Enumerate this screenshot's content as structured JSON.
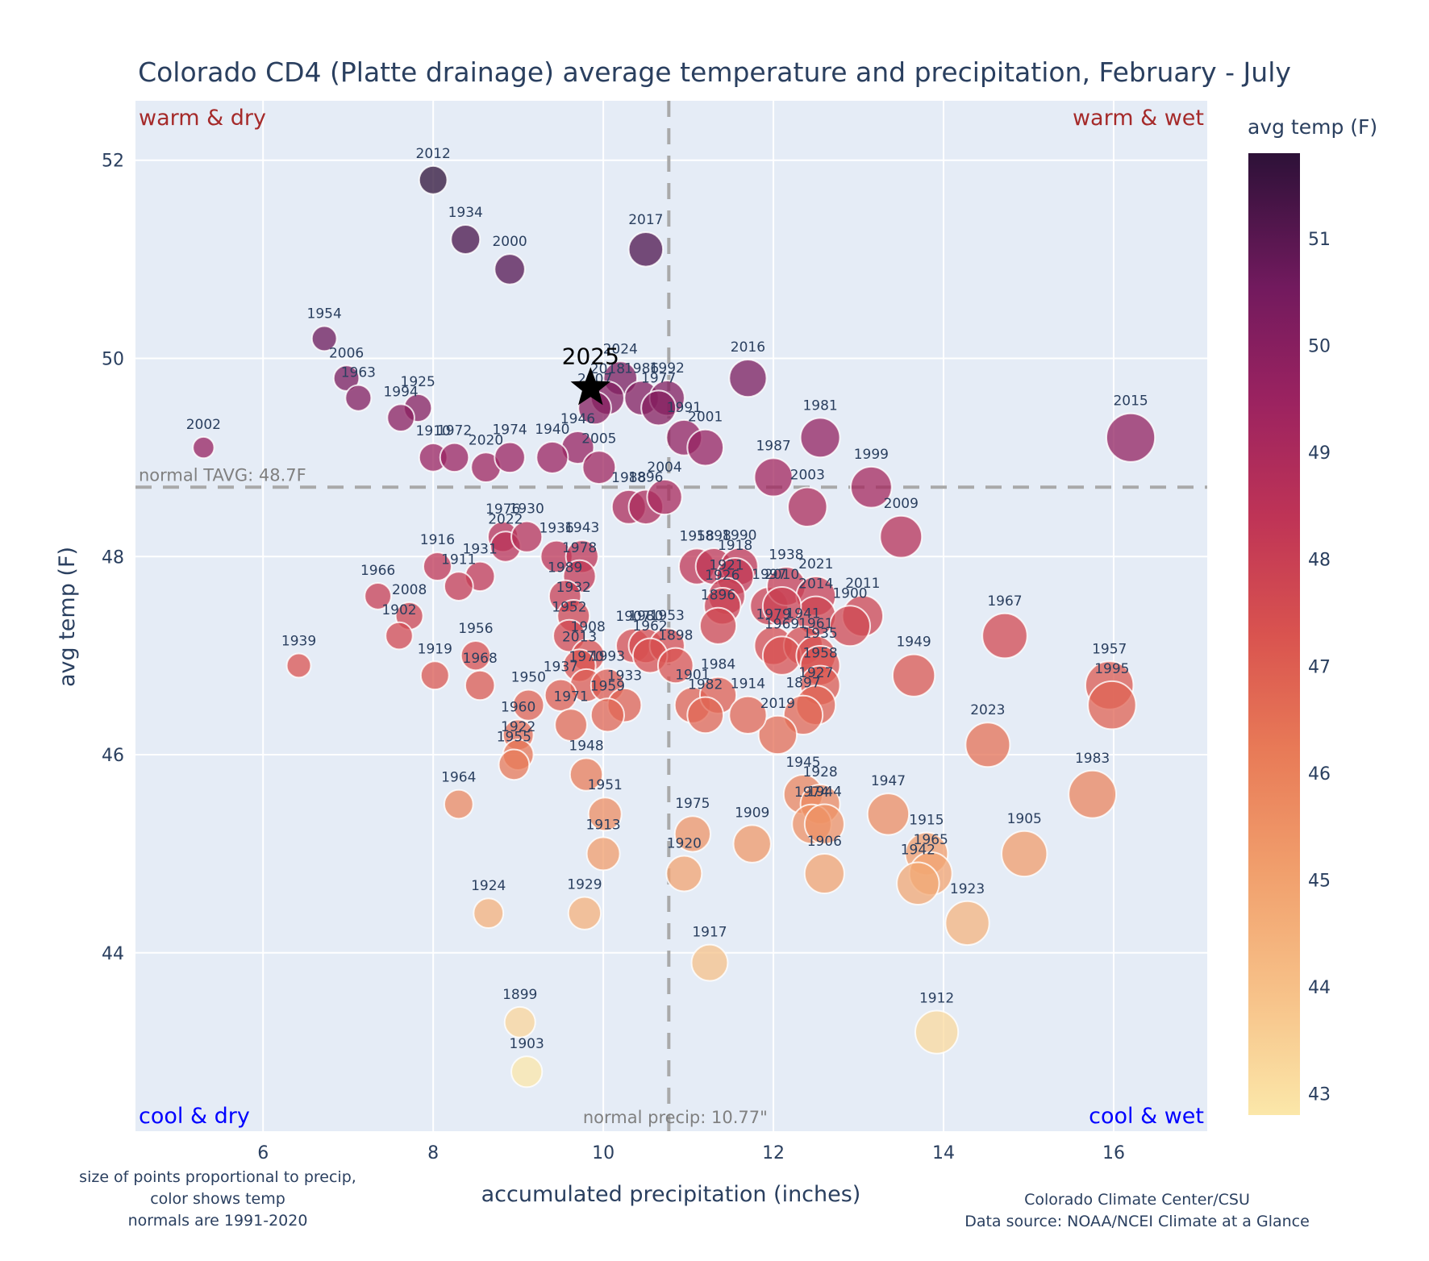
{
  "chart_data": {
    "type": "scatter",
    "title": "Colorado CD4 (Platte drainage) average temperature and precipitation, February - July",
    "xlabel": "accumulated precipitation (inches)",
    "ylabel": "avg temp (F)",
    "xlim": [
      4.5,
      17.1
    ],
    "ylim": [
      42.2,
      52.6
    ],
    "xticks": [
      6,
      8,
      10,
      12,
      14,
      16
    ],
    "yticks": [
      44,
      46,
      48,
      50,
      52
    ],
    "grid": true,
    "colorbar": {
      "title": "avg temp (F)",
      "range": [
        42.8,
        51.8
      ],
      "ticks": [
        43,
        44,
        45,
        46,
        47,
        48,
        49,
        50,
        51
      ],
      "colorscale": "magma-reversed"
    },
    "normal_temp": 48.7,
    "normal_precip": 10.77,
    "normal_temp_label": "normal TAVG: 48.7F",
    "normal_precip_label": "normal precip: 10.77\"",
    "quadrants": {
      "top_left": "warm & dry",
      "top_right": "warm & wet",
      "bottom_left": "cool & dry",
      "bottom_right": "cool & wet"
    },
    "highlight": {
      "year": "2025",
      "x": 9.85,
      "y": 49.7,
      "marker": "star"
    },
    "points": [
      {
        "year": "2012",
        "x": 8.0,
        "y": 51.8
      },
      {
        "year": "1934",
        "x": 8.38,
        "y": 51.2
      },
      {
        "year": "2000",
        "x": 8.9,
        "y": 50.9
      },
      {
        "year": "2017",
        "x": 10.5,
        "y": 51.1
      },
      {
        "year": "1954",
        "x": 6.72,
        "y": 50.2
      },
      {
        "year": "2006",
        "x": 6.98,
        "y": 49.8
      },
      {
        "year": "1963",
        "x": 7.12,
        "y": 49.6
      },
      {
        "year": "1925",
        "x": 7.82,
        "y": 49.5
      },
      {
        "year": "1994",
        "x": 7.62,
        "y": 49.4
      },
      {
        "year": "2002",
        "x": 5.3,
        "y": 49.1
      },
      {
        "year": "2024",
        "x": 10.2,
        "y": 49.8
      },
      {
        "year": "2018",
        "x": 10.05,
        "y": 49.6
      },
      {
        "year": "2007",
        "x": 9.9,
        "y": 49.5
      },
      {
        "year": "1986",
        "x": 10.45,
        "y": 49.6
      },
      {
        "year": "1992",
        "x": 10.75,
        "y": 49.6
      },
      {
        "year": "1977",
        "x": 10.65,
        "y": 49.5
      },
      {
        "year": "1946",
        "x": 9.7,
        "y": 49.1
      },
      {
        "year": "1991",
        "x": 10.95,
        "y": 49.2
      },
      {
        "year": "2001",
        "x": 11.2,
        "y": 49.1
      },
      {
        "year": "2016",
        "x": 11.7,
        "y": 49.8
      },
      {
        "year": "1981",
        "x": 12.55,
        "y": 49.2
      },
      {
        "year": "1910",
        "x": 8.0,
        "y": 49.0
      },
      {
        "year": "1972",
        "x": 8.25,
        "y": 49.0
      },
      {
        "year": "2020",
        "x": 8.62,
        "y": 48.9
      },
      {
        "year": "1974",
        "x": 8.9,
        "y": 49.0
      },
      {
        "year": "1940",
        "x": 9.4,
        "y": 49.0
      },
      {
        "year": "2005",
        "x": 9.95,
        "y": 48.9
      },
      {
        "year": "1987",
        "x": 12.0,
        "y": 48.8
      },
      {
        "year": "1999",
        "x": 13.15,
        "y": 48.7
      },
      {
        "year": "2015",
        "x": 16.2,
        "y": 49.2
      },
      {
        "year": "1988",
        "x": 10.3,
        "y": 48.5
      },
      {
        "year": "1896",
        "x": 10.5,
        "y": 48.5
      },
      {
        "year": "2004",
        "x": 10.72,
        "y": 48.6
      },
      {
        "year": "2003",
        "x": 12.4,
        "y": 48.5
      },
      {
        "year": "2009",
        "x": 13.5,
        "y": 48.2
      },
      {
        "year": "1976",
        "x": 8.82,
        "y": 48.2
      },
      {
        "year": "2022",
        "x": 8.85,
        "y": 48.1
      },
      {
        "year": "1930",
        "x": 9.1,
        "y": 48.2
      },
      {
        "year": "1936",
        "x": 9.45,
        "y": 48.0
      },
      {
        "year": "1943",
        "x": 9.75,
        "y": 48.0
      },
      {
        "year": "1916",
        "x": 8.05,
        "y": 47.9
      },
      {
        "year": "1931",
        "x": 8.55,
        "y": 47.8
      },
      {
        "year": "1911",
        "x": 8.3,
        "y": 47.7
      },
      {
        "year": "1978",
        "x": 9.72,
        "y": 47.8
      },
      {
        "year": "1989",
        "x": 9.55,
        "y": 47.6
      },
      {
        "year": "1966",
        "x": 7.35,
        "y": 47.6
      },
      {
        "year": "2008",
        "x": 7.72,
        "y": 47.4
      },
      {
        "year": "1902",
        "x": 7.6,
        "y": 47.2
      },
      {
        "year": "1932",
        "x": 9.65,
        "y": 47.4
      },
      {
        "year": "1952",
        "x": 9.6,
        "y": 47.2
      },
      {
        "year": "1939",
        "x": 6.42,
        "y": 46.9
      },
      {
        "year": "1919",
        "x": 8.02,
        "y": 46.8
      },
      {
        "year": "1956",
        "x": 8.5,
        "y": 47.0
      },
      {
        "year": "1968",
        "x": 8.55,
        "y": 46.7
      },
      {
        "year": "1908",
        "x": 9.82,
        "y": 47.0
      },
      {
        "year": "2013",
        "x": 9.72,
        "y": 46.9
      },
      {
        "year": "1970",
        "x": 9.8,
        "y": 46.7
      },
      {
        "year": "1937",
        "x": 9.5,
        "y": 46.6
      },
      {
        "year": "1993",
        "x": 10.05,
        "y": 46.7
      },
      {
        "year": "1950",
        "x": 9.12,
        "y": 46.5
      },
      {
        "year": "1971",
        "x": 9.62,
        "y": 46.3
      },
      {
        "year": "1933",
        "x": 10.25,
        "y": 46.5
      },
      {
        "year": "1959",
        "x": 10.05,
        "y": 46.4
      },
      {
        "year": "1907",
        "x": 10.35,
        "y": 47.1
      },
      {
        "year": "1980",
        "x": 10.5,
        "y": 47.1
      },
      {
        "year": "1953",
        "x": 10.75,
        "y": 47.1
      },
      {
        "year": "1962",
        "x": 10.55,
        "y": 47.0
      },
      {
        "year": "1898",
        "x": 10.85,
        "y": 46.9
      },
      {
        "year": "1958",
        "x": 11.1,
        "y": 47.9
      },
      {
        "year": "1898b",
        "x": 11.3,
        "y": 47.9
      },
      {
        "year": "1990",
        "x": 11.6,
        "y": 47.9
      },
      {
        "year": "1918",
        "x": 11.55,
        "y": 47.8
      },
      {
        "year": "1921",
        "x": 11.45,
        "y": 47.6
      },
      {
        "year": "1997",
        "x": 11.95,
        "y": 47.5
      },
      {
        "year": "1926",
        "x": 11.4,
        "y": 47.5
      },
      {
        "year": "1896b",
        "x": 11.35,
        "y": 47.3
      },
      {
        "year": "1938",
        "x": 12.15,
        "y": 47.7
      },
      {
        "year": "2021",
        "x": 12.5,
        "y": 47.6
      },
      {
        "year": "2014",
        "x": 12.5,
        "y": 47.4
      },
      {
        "year": "2011",
        "x": 13.05,
        "y": 47.4
      },
      {
        "year": "1900",
        "x": 12.9,
        "y": 47.3
      },
      {
        "year": "2010",
        "x": 12.1,
        "y": 47.5
      },
      {
        "year": "1979",
        "x": 12.0,
        "y": 47.1
      },
      {
        "year": "1941",
        "x": 12.35,
        "y": 47.1
      },
      {
        "year": "1969",
        "x": 12.1,
        "y": 47.0
      },
      {
        "year": "1961",
        "x": 12.5,
        "y": 47.0
      },
      {
        "year": "1935",
        "x": 12.55,
        "y": 46.9
      },
      {
        "year": "1958b",
        "x": 12.55,
        "y": 46.7
      },
      {
        "year": "1927",
        "x": 12.5,
        "y": 46.5
      },
      {
        "year": "1897",
        "x": 12.35,
        "y": 46.4
      },
      {
        "year": "2019",
        "x": 12.05,
        "y": 46.2
      },
      {
        "year": "1901",
        "x": 11.05,
        "y": 46.5
      },
      {
        "year": "1984",
        "x": 11.35,
        "y": 46.6
      },
      {
        "year": "1982",
        "x": 11.2,
        "y": 46.4
      },
      {
        "year": "1914",
        "x": 11.7,
        "y": 46.4
      },
      {
        "year": "1949",
        "x": 13.65,
        "y": 46.8
      },
      {
        "year": "1967",
        "x": 14.72,
        "y": 47.2
      },
      {
        "year": "1957",
        "x": 15.95,
        "y": 46.7
      },
      {
        "year": "1995",
        "x": 15.98,
        "y": 46.5
      },
      {
        "year": "2023",
        "x": 14.52,
        "y": 46.1
      },
      {
        "year": "1983",
        "x": 15.75,
        "y": 45.6
      },
      {
        "year": "1960",
        "x": 9.0,
        "y": 46.2
      },
      {
        "year": "1922",
        "x": 9.0,
        "y": 46.0
      },
      {
        "year": "1955",
        "x": 8.95,
        "y": 45.9
      },
      {
        "year": "1948",
        "x": 9.8,
        "y": 45.8
      },
      {
        "year": "1964",
        "x": 8.3,
        "y": 45.5
      },
      {
        "year": "1951",
        "x": 10.02,
        "y": 45.4
      },
      {
        "year": "1913",
        "x": 10.0,
        "y": 45.0
      },
      {
        "year": "1945",
        "x": 12.35,
        "y": 45.6
      },
      {
        "year": "1928",
        "x": 12.55,
        "y": 45.5
      },
      {
        "year": "1974b",
        "x": 12.45,
        "y": 45.3
      },
      {
        "year": "1944",
        "x": 12.6,
        "y": 45.3
      },
      {
        "year": "1947",
        "x": 13.35,
        "y": 45.4
      },
      {
        "year": "1975",
        "x": 11.05,
        "y": 45.2
      },
      {
        "year": "1909",
        "x": 11.75,
        "y": 45.1
      },
      {
        "year": "1920",
        "x": 10.95,
        "y": 44.8
      },
      {
        "year": "1906",
        "x": 12.6,
        "y": 44.8
      },
      {
        "year": "1915",
        "x": 13.8,
        "y": 45.0
      },
      {
        "year": "1965",
        "x": 13.85,
        "y": 44.8
      },
      {
        "year": "1942",
        "x": 13.7,
        "y": 44.7
      },
      {
        "year": "1905",
        "x": 14.95,
        "y": 45.0
      },
      {
        "year": "1923",
        "x": 14.28,
        "y": 44.3
      },
      {
        "year": "1924",
        "x": 8.65,
        "y": 44.4
      },
      {
        "year": "1929",
        "x": 9.78,
        "y": 44.4
      },
      {
        "year": "1917",
        "x": 11.25,
        "y": 43.9
      },
      {
        "year": "1899",
        "x": 9.02,
        "y": 43.3
      },
      {
        "year": "1903",
        "x": 9.1,
        "y": 42.8
      },
      {
        "year": "1912",
        "x": 13.92,
        "y": 43.2
      }
    ],
    "footnote_left": [
      "size of points proportional to precip,",
      "color shows temp",
      "normals are 1991-2020"
    ],
    "footnote_right": [
      "Colorado Climate Center/CSU",
      "Data source: NOAA/NCEI Climate at a Glance"
    ]
  }
}
